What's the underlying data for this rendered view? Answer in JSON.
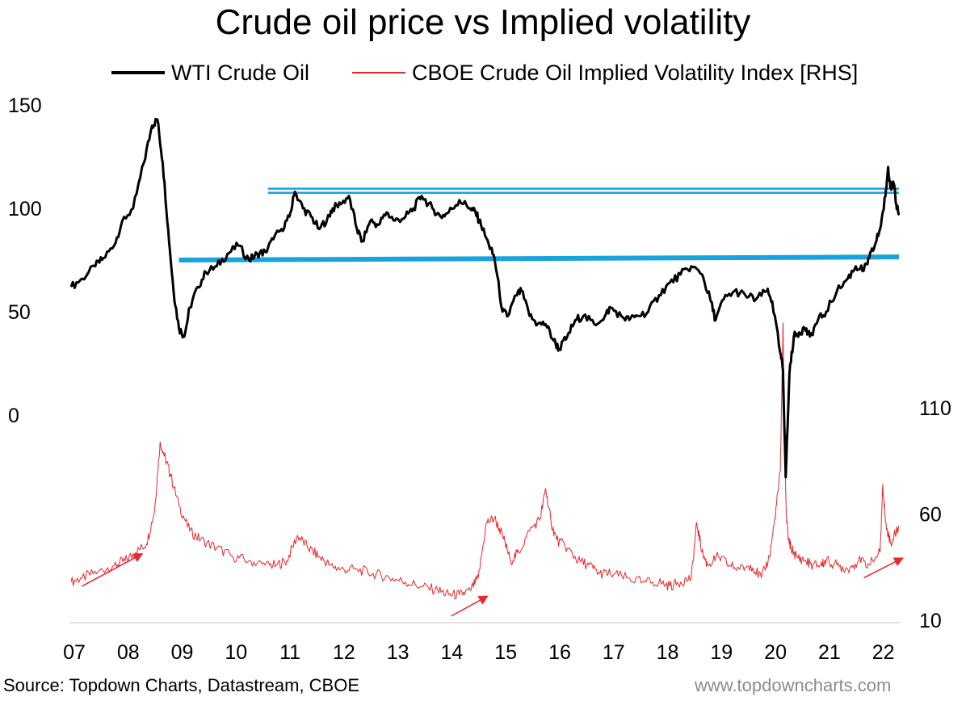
{
  "chart_data": {
    "type": "line",
    "title": "Crude oil price vs Implied volatility",
    "colors": {
      "wti": "#000000",
      "vol": "#e8272a",
      "level_lines": "#18a3dd",
      "arrows": "#e8272a"
    },
    "x_axis": {
      "tick_labels": [
        "07",
        "08",
        "09",
        "10",
        "11",
        "12",
        "13",
        "14",
        "15",
        "16",
        "17",
        "18",
        "19",
        "20",
        "21",
        "22"
      ],
      "range": [
        2007.0,
        2022.35
      ]
    },
    "y_axis_left": {
      "tick_labels": [
        "0",
        "50",
        "100",
        "150"
      ],
      "ticks": [
        0,
        50,
        100,
        150
      ],
      "range": [
        0,
        150
      ]
    },
    "y_axis_right": {
      "tick_labels": [
        "10",
        "60",
        "110"
      ],
      "ticks": [
        10,
        60,
        110
      ],
      "range": [
        10,
        110
      ]
    },
    "grid": false,
    "legend_position": "top",
    "series": [
      {
        "name": "WTI Crude Oil",
        "axis": "left",
        "x": [
          2007.0,
          2007.2,
          2007.45,
          2007.6,
          2007.8,
          2007.95,
          2008.15,
          2008.35,
          2008.5,
          2008.6,
          2008.7,
          2008.8,
          2008.9,
          2009.0,
          2009.1,
          2009.2,
          2009.35,
          2009.5,
          2009.7,
          2009.9,
          2010.1,
          2010.3,
          2010.45,
          2010.6,
          2010.75,
          2010.9,
          2011.05,
          2011.15,
          2011.3,
          2011.45,
          2011.6,
          2011.75,
          2011.85,
          2012.0,
          2012.15,
          2012.3,
          2012.4,
          2012.55,
          2012.7,
          2012.85,
          2013.0,
          2013.2,
          2013.35,
          2013.5,
          2013.7,
          2013.85,
          2014.0,
          2014.2,
          2014.4,
          2014.5,
          2014.6,
          2014.75,
          2014.85,
          2015.0,
          2015.1,
          2015.25,
          2015.35,
          2015.5,
          2015.65,
          2015.8,
          2015.95,
          2016.05,
          2016.2,
          2016.35,
          2016.5,
          2016.7,
          2016.9,
          2017.0,
          2017.2,
          2017.35,
          2017.5,
          2017.7,
          2017.9,
          2018.1,
          2018.3,
          2018.5,
          2018.7,
          2018.85,
          2018.95,
          2019.1,
          2019.3,
          2019.5,
          2019.7,
          2019.9,
          2020.0,
          2020.15,
          2020.2,
          2020.25,
          2020.32,
          2020.4,
          2020.5,
          2020.6,
          2020.7,
          2020.85,
          2021.0,
          2021.2,
          2021.4,
          2021.55,
          2021.7,
          2021.8,
          2021.9,
          2022.0,
          2022.1,
          2022.15,
          2022.2,
          2022.25,
          2022.3,
          2022.35
        ],
        "values": [
          62,
          66,
          72,
          76,
          82,
          94,
          100,
          122,
          140,
          143,
          122,
          90,
          60,
          42,
          38,
          52,
          62,
          69,
          72,
          78,
          82,
          75,
          78,
          79,
          85,
          90,
          96,
          108,
          100,
          96,
          90,
          95,
          100,
          102,
          106,
          90,
          84,
          94,
          92,
          98,
          94,
          96,
          100,
          106,
          100,
          96,
          98,
          104,
          100,
          98,
          92,
          82,
          76,
          50,
          48,
          58,
          60,
          48,
          44,
          44,
          36,
          32,
          38,
          46,
          48,
          44,
          48,
          52,
          48,
          46,
          48,
          50,
          58,
          64,
          68,
          72,
          68,
          56,
          46,
          56,
          60,
          58,
          56,
          60,
          55,
          30,
          22,
          -30,
          20,
          38,
          40,
          42,
          38,
          46,
          50,
          60,
          66,
          72,
          70,
          76,
          82,
          90,
          106,
          120,
          110,
          112,
          102,
          98
        ]
      },
      {
        "name": "CBOE Crude Oil Implied Volatility Index [RHS]",
        "axis": "right",
        "x": [
          2007.0,
          2007.2,
          2007.5,
          2007.8,
          2008.0,
          2008.2,
          2008.4,
          2008.55,
          2008.65,
          2008.75,
          2008.85,
          2009.0,
          2009.2,
          2009.4,
          2009.7,
          2010.0,
          2010.3,
          2010.6,
          2010.8,
          2011.0,
          2011.2,
          2011.4,
          2011.6,
          2011.8,
          2012.0,
          2012.3,
          2012.6,
          2012.9,
          2013.2,
          2013.5,
          2013.8,
          2014.0,
          2014.2,
          2014.4,
          2014.55,
          2014.7,
          2014.85,
          2015.0,
          2015.15,
          2015.3,
          2015.5,
          2015.7,
          2015.8,
          2015.9,
          2016.0,
          2016.2,
          2016.4,
          2016.6,
          2016.8,
          2017.0,
          2017.3,
          2017.6,
          2017.9,
          2018.1,
          2018.3,
          2018.5,
          2018.6,
          2018.7,
          2018.8,
          2019.0,
          2019.2,
          2019.4,
          2019.6,
          2019.8,
          2019.95,
          2020.05,
          2020.15,
          2020.2,
          2020.22,
          2020.26,
          2020.3,
          2020.35,
          2020.45,
          2020.6,
          2020.75,
          2020.9,
          2021.0,
          2021.2,
          2021.4,
          2021.6,
          2021.8,
          2022.0,
          2022.05,
          2022.1,
          2022.2,
          2022.3,
          2022.35
        ],
        "values": [
          28,
          30,
          33,
          36,
          38,
          42,
          46,
          62,
          94,
          86,
          78,
          64,
          52,
          48,
          44,
          40,
          38,
          36,
          36,
          38,
          50,
          44,
          40,
          36,
          34,
          34,
          32,
          30,
          28,
          26,
          24,
          22,
          22,
          24,
          30,
          56,
          58,
          50,
          38,
          42,
          52,
          58,
          72,
          56,
          48,
          44,
          38,
          36,
          32,
          32,
          30,
          28,
          28,
          26,
          28,
          30,
          56,
          42,
          36,
          40,
          36,
          34,
          36,
          30,
          40,
          58,
          80,
          150,
          110,
          60,
          48,
          44,
          40,
          38,
          36,
          36,
          38,
          36,
          34,
          38,
          36,
          42,
          74,
          56,
          46,
          52,
          54
        ]
      }
    ],
    "reference_lines": [
      {
        "axis": "left",
        "from": [
          2010.65,
          109.5
        ],
        "to": [
          2022.35,
          109.5
        ]
      },
      {
        "axis": "left",
        "from": [
          2010.65,
          107.5
        ],
        "to": [
          2022.35,
          107.5
        ]
      },
      {
        "axis": "left",
        "from": [
          2009.0,
          75.0
        ],
        "to": [
          2022.35,
          76.5
        ]
      }
    ],
    "annotation_arrows": [
      {
        "from": [
          2007.2,
          26
        ],
        "to": [
          2008.3,
          41
        ]
      },
      {
        "from": [
          2014.05,
          12
        ],
        "to": [
          2014.7,
          21
        ]
      },
      {
        "from": [
          2021.7,
          30
        ],
        "to": [
          2022.4,
          39
        ]
      }
    ]
  },
  "legend": {
    "items": [
      {
        "label": "WTI Crude Oil"
      },
      {
        "label": "CBOE Crude Oil Implied Volatility Index [RHS]"
      }
    ]
  },
  "footer": {
    "source": "Source: Topdown Charts, Datastream, CBOE",
    "website": "www.topdowncharts.com"
  }
}
